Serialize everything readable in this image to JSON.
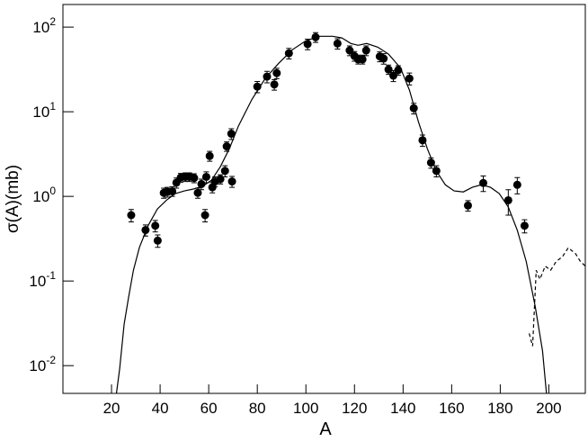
{
  "chart_data": {
    "type": "scatter",
    "xlabel": "A",
    "ylabel": "σ(A)(mb)",
    "xlim": [
      0,
      215
    ],
    "ylim": [
      0.0047,
      185
    ],
    "yscale": "log",
    "xticks": [
      20,
      40,
      60,
      80,
      100,
      120,
      140,
      160,
      180,
      200
    ],
    "yticks": [
      {
        "value": 0.01,
        "label": "10",
        "exponent": "-2"
      },
      {
        "value": 0.1,
        "label": "10",
        "exponent": "-1"
      },
      {
        "value": 1,
        "label": "10",
        "exponent": "0"
      },
      {
        "value": 10,
        "label": "10",
        "exponent": "1"
      },
      {
        "value": 100,
        "label": "10",
        "exponent": "2"
      }
    ],
    "series": [
      {
        "mode": "markers",
        "color": "#000000",
        "x": [
          28.1,
          34,
          38,
          39,
          41.5,
          43,
          45,
          46.7,
          48.5,
          50.4,
          52,
          54,
          55.5,
          57,
          58.5,
          59,
          60.4,
          61.5,
          62.6,
          64.8,
          66.7,
          67.4,
          69.3,
          69.6,
          80,
          84,
          87,
          88,
          93,
          100.7,
          104,
          113,
          118,
          120,
          121.5,
          123.3,
          124.8,
          130.4,
          132,
          134,
          136,
          138,
          142.6,
          144.4,
          148,
          151.5,
          153.7,
          166.7,
          173,
          183.3,
          187,
          190
        ],
        "values": [
          0.6,
          0.4,
          0.45,
          0.3,
          1.1,
          1.13,
          1.15,
          1.45,
          1.67,
          1.7,
          1.7,
          1.65,
          1.1,
          1.4,
          0.6,
          1.7,
          3.0,
          1.28,
          1.5,
          1.6,
          2.0,
          3.9,
          5.5,
          1.5,
          19.8,
          26,
          21,
          28.6,
          49,
          63,
          76,
          64,
          53,
          45.5,
          41.6,
          41.6,
          53,
          45,
          42.5,
          31.6,
          26.7,
          31,
          24.7,
          11,
          4.6,
          2.5,
          2.0,
          0.78,
          1.44,
          0.9,
          1.37,
          0.45
        ],
        "errors": [
          0.1,
          0.06,
          0.07,
          0.05,
          0.15,
          0.15,
          0.15,
          0.2,
          0.2,
          0.2,
          0.2,
          0.2,
          0.15,
          0.2,
          0.1,
          0.25,
          0.4,
          0.18,
          0.2,
          0.2,
          0.3,
          0.5,
          0.8,
          0.22,
          3,
          4,
          3,
          4,
          7,
          9,
          10,
          9,
          7,
          6,
          5,
          5,
          7,
          6,
          6,
          4,
          4,
          4,
          4,
          1.6,
          0.7,
          0.35,
          0.3,
          0.11,
          0.3,
          0.3,
          0.3,
          0.08
        ]
      },
      {
        "mode": "line",
        "color": "#000000",
        "dash": false,
        "x": [
          22,
          23.3,
          25.2,
          27,
          29,
          31.5,
          35.2,
          38.9,
          42.6,
          46.3,
          50,
          53.7,
          57.4,
          61.1,
          64.8,
          68.5,
          72.2,
          77.8,
          83.3,
          88.9,
          94.4,
          100,
          105.6,
          111,
          114.8,
          118.5,
          121.5,
          125,
          129.6,
          134,
          138.9,
          142.6,
          146.3,
          150,
          153.7,
          157.4,
          161,
          164.8,
          168.5,
          172.2,
          176,
          179.6,
          183.3,
          187,
          190.7,
          194.4,
          197.4,
          199
        ],
        "values": [
          0.0047,
          0.009,
          0.031,
          0.064,
          0.134,
          0.25,
          0.46,
          0.71,
          0.9,
          1.08,
          1.16,
          1.22,
          1.31,
          1.55,
          2.24,
          3.66,
          6.75,
          14,
          24.8,
          37.6,
          54,
          69,
          78,
          78,
          74.5,
          64,
          61,
          64,
          58,
          48,
          33,
          18,
          7.6,
          3.66,
          2.0,
          1.37,
          1.16,
          1.13,
          1.28,
          1.37,
          1.28,
          1.08,
          0.75,
          0.4,
          0.17,
          0.05,
          0.015,
          0.0047
        ]
      },
      {
        "mode": "line",
        "color": "#000000",
        "dash": true,
        "x": [
          191.9,
          193.3,
          194.8,
          196.3,
          198.5,
          200.7,
          203,
          205.6,
          208,
          211,
          213,
          215
        ],
        "values": [
          0.024,
          0.017,
          0.134,
          0.105,
          0.15,
          0.134,
          0.17,
          0.194,
          0.247,
          0.21,
          0.17,
          0.15
        ]
      }
    ]
  }
}
